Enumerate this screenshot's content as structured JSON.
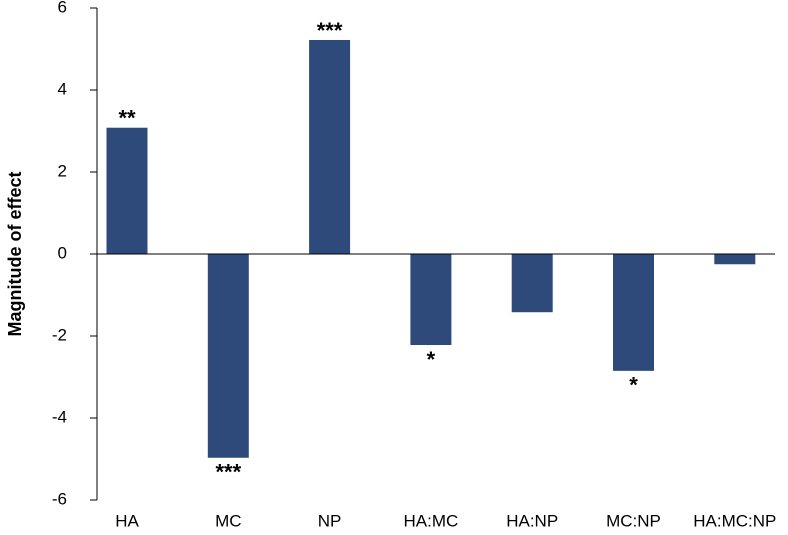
{
  "chart_data": {
    "type": "bar",
    "y_label": "Magnitude of effect",
    "categories": [
      "HA",
      "MC",
      "NP",
      "HA:MC",
      "HA:NP",
      "MC:NP",
      "HA:MC:NP"
    ],
    "values": [
      3.08,
      -4.97,
      5.22,
      -2.22,
      -1.42,
      -2.85,
      -0.25
    ],
    "annotations": [
      "**",
      "***",
      "***",
      "*",
      null,
      "*",
      null
    ],
    "color": "#2e4a7b",
    "ylim": [
      -6,
      6
    ],
    "yticks": [
      -6,
      -4,
      -2,
      0,
      2,
      4,
      6
    ],
    "grid": false
  }
}
